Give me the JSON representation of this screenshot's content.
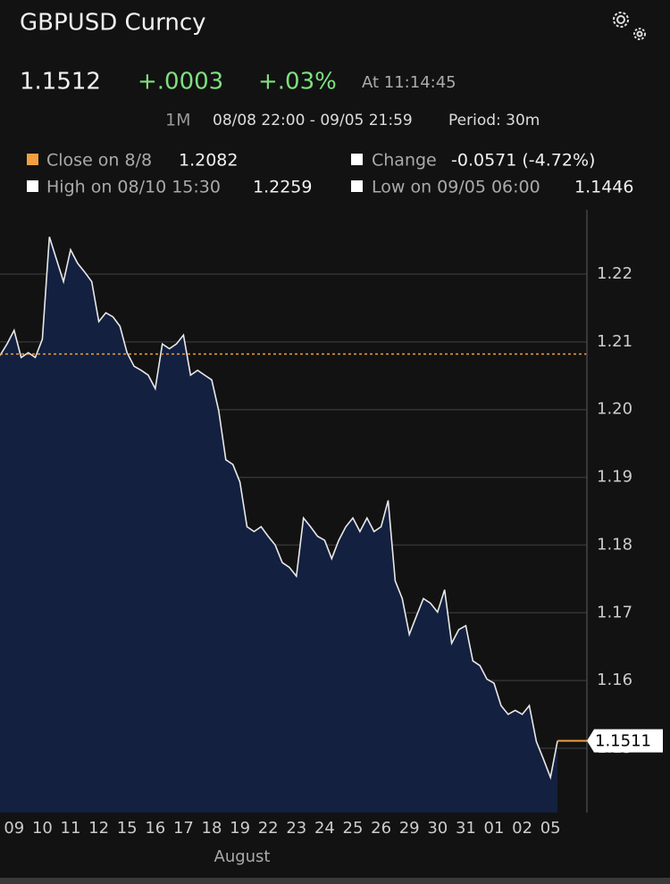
{
  "header": {
    "title": "GBPUSD Curncy",
    "price": 1.1512,
    "change": "+.0003",
    "change_pct": "+.03%",
    "time": "At 11:14:45"
  },
  "range": {
    "button": "1M",
    "span": "08/08 22:00 - 09/05 21:59",
    "period": "Period: 30m"
  },
  "stats": {
    "close": {
      "label": "Close on 8/8",
      "value": 1.2082
    },
    "change": {
      "label": "Change",
      "value": "-0.0571 (-4.72%)"
    },
    "high": {
      "label": "High on 08/10 15:30",
      "value": 1.2259
    },
    "low": {
      "label": "Low on 09/05 06:00",
      "value": 1.1446
    }
  },
  "chart_data": {
    "type": "area",
    "x_label": "August",
    "categories": [
      null,
      null,
      "09",
      null,
      null,
      null,
      "10",
      null,
      null,
      null,
      "11",
      null,
      null,
      null,
      "12",
      null,
      null,
      null,
      "15",
      null,
      null,
      null,
      "16",
      null,
      null,
      null,
      "17",
      null,
      null,
      null,
      "18",
      null,
      null,
      null,
      "19",
      null,
      null,
      null,
      "22",
      null,
      null,
      null,
      "23",
      null,
      null,
      null,
      "24",
      null,
      null,
      null,
      "25",
      null,
      null,
      null,
      "26",
      null,
      null,
      null,
      "29",
      null,
      null,
      null,
      "30",
      null,
      null,
      null,
      "31",
      null,
      null,
      null,
      "01",
      null,
      null,
      null,
      "02",
      null,
      null,
      null,
      "05",
      null
    ],
    "series": [
      {
        "name": "GBPUSD",
        "color": "#e8e8e8",
        "fill": "#13203f",
        "values": [
          1.208,
          1.2097,
          1.2117,
          1.2077,
          1.2084,
          1.2077,
          1.2104,
          1.2255,
          1.2222,
          1.2189,
          1.2236,
          1.2216,
          1.2203,
          1.2189,
          1.213,
          1.2143,
          1.2137,
          1.2123,
          1.2084,
          1.2064,
          1.2058,
          1.2051,
          1.2031,
          1.2097,
          1.209,
          1.2097,
          1.211,
          1.2051,
          1.2058,
          1.2051,
          1.2044,
          1.1998,
          1.1926,
          1.1919,
          1.1893,
          1.1827,
          1.182,
          1.1827,
          1.1813,
          1.18,
          1.1774,
          1.1767,
          1.1754,
          1.184,
          1.1827,
          1.1813,
          1.1807,
          1.178,
          1.1807,
          1.1827,
          1.184,
          1.182,
          1.184,
          1.182,
          1.1827,
          1.1866,
          1.1747,
          1.1721,
          1.1668,
          1.1695,
          1.1721,
          1.1714,
          1.1701,
          1.1734,
          1.1655,
          1.1675,
          1.1681,
          1.1629,
          1.1622,
          1.1602,
          1.1596,
          1.1563,
          1.155,
          1.1556,
          1.155,
          1.1563,
          1.151,
          1.1484,
          1.1457,
          1.1511
        ]
      }
    ],
    "ylim": [
      1.1405,
      1.2295
    ],
    "yticks": [
      1.15,
      1.16,
      1.17,
      1.18,
      1.19,
      {
        "value": 1.2,
        "label": "1.20"
      },
      1.21,
      1.22
    ],
    "grid": true,
    "reference_color": "#f0a040"
  }
}
